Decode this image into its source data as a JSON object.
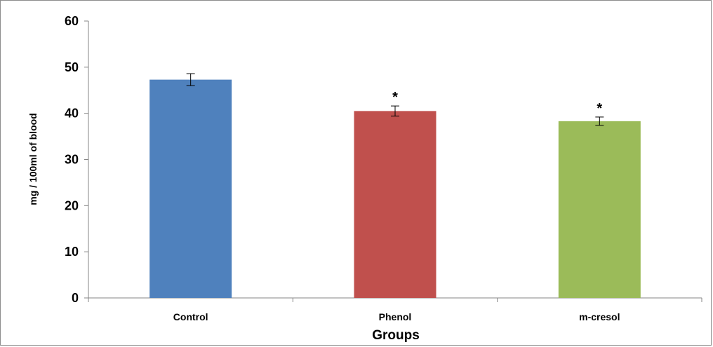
{
  "chart_data": {
    "type": "bar",
    "title": "",
    "xlabel": "Groups",
    "ylabel": "mg / 100ml of blood",
    "ylim": [
      0,
      60
    ],
    "yticks": [
      0,
      10,
      20,
      30,
      40,
      50,
      60
    ],
    "grid": false,
    "legend": "none",
    "categories": [
      "Control",
      "Phenol",
      "m-cresol"
    ],
    "values": [
      47.3,
      40.5,
      38.3
    ],
    "errors": [
      1.3,
      1.1,
      0.9
    ],
    "annotations": [
      "",
      "*",
      "*"
    ],
    "colors": [
      "#4f81bd",
      "#c0504d",
      "#9bbb59"
    ]
  }
}
